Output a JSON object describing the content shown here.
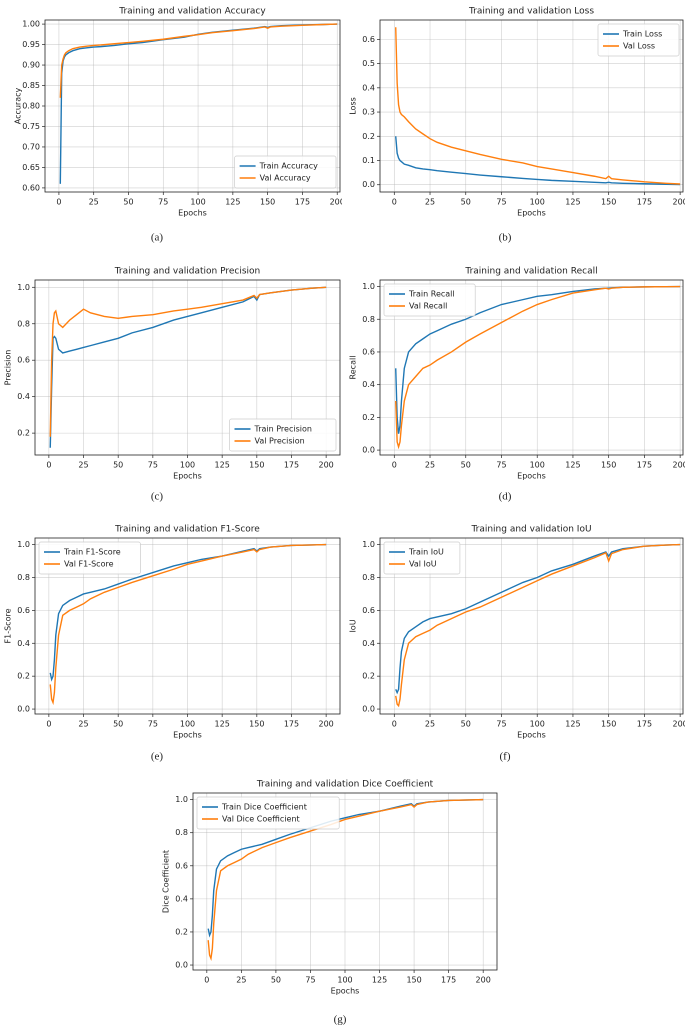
{
  "chart_data": [
    {
      "type": "line",
      "title": "Training and validation Accuracy",
      "xlabel": "Epochs",
      "ylabel": "Accuracy",
      "caption": "(a)",
      "x": [
        1,
        2,
        3,
        4,
        5,
        7,
        10,
        15,
        20,
        25,
        30,
        40,
        50,
        60,
        75,
        90,
        100,
        110,
        125,
        140,
        148,
        150,
        152,
        160,
        175,
        190,
        200
      ],
      "series": [
        {
          "name": "Train Accuracy",
          "color": "#1f77b4",
          "values": [
            0.61,
            0.88,
            0.91,
            0.92,
            0.925,
            0.93,
            0.935,
            0.94,
            0.942,
            0.944,
            0.945,
            0.948,
            0.952,
            0.955,
            0.962,
            0.968,
            0.975,
            0.98,
            0.985,
            0.99,
            0.994,
            0.992,
            0.994,
            0.996,
            0.998,
            0.999,
            1.0
          ]
        },
        {
          "name": "Val Accuracy",
          "color": "#ff7f0e",
          "values": [
            0.82,
            0.9,
            0.915,
            0.925,
            0.93,
            0.935,
            0.94,
            0.944,
            0.946,
            0.948,
            0.949,
            0.952,
            0.955,
            0.958,
            0.963,
            0.97,
            0.974,
            0.979,
            0.984,
            0.989,
            0.993,
            0.99,
            0.993,
            0.995,
            0.997,
            0.999,
            1.0
          ]
        }
      ],
      "xlim": [
        -10,
        202
      ],
      "xticks": [
        0,
        25,
        50,
        75,
        100,
        125,
        150,
        175,
        200
      ],
      "ylim": [
        0.59,
        1.01
      ],
      "yticks": [
        {
          "value": 0.6,
          "label": "0.60"
        },
        {
          "value": 0.65,
          "label": "0.65"
        },
        {
          "value": 0.7,
          "label": "0.70"
        },
        {
          "value": 0.75,
          "label": "0.75"
        },
        {
          "value": 0.8,
          "label": "0.80"
        },
        {
          "value": 0.85,
          "label": "0.85"
        },
        {
          "value": 0.9,
          "label": "0.90"
        },
        {
          "value": 0.95,
          "label": "0.95"
        },
        {
          "value": 1.0,
          "label": "1.00"
        }
      ],
      "grid": true,
      "legend": "lower right"
    },
    {
      "type": "line",
      "title": "Training and validation Loss",
      "xlabel": "Epochs",
      "ylabel": "Loss",
      "caption": "(b)",
      "x": [
        1,
        2,
        3,
        4,
        5,
        7,
        10,
        15,
        20,
        25,
        30,
        40,
        50,
        60,
        75,
        90,
        100,
        110,
        125,
        140,
        148,
        150,
        152,
        160,
        175,
        190,
        200
      ],
      "series": [
        {
          "name": "Train Loss",
          "color": "#1f77b4",
          "values": [
            0.2,
            0.13,
            0.11,
            0.1,
            0.095,
            0.085,
            0.08,
            0.07,
            0.065,
            0.062,
            0.058,
            0.052,
            0.046,
            0.04,
            0.033,
            0.026,
            0.022,
            0.018,
            0.014,
            0.01,
            0.008,
            0.01,
            0.008,
            0.006,
            0.004,
            0.002,
            0.001
          ]
        },
        {
          "name": "Val Loss",
          "color": "#ff7f0e",
          "values": [
            0.65,
            0.42,
            0.33,
            0.3,
            0.29,
            0.28,
            0.26,
            0.23,
            0.21,
            0.19,
            0.175,
            0.155,
            0.14,
            0.125,
            0.105,
            0.09,
            0.075,
            0.065,
            0.05,
            0.035,
            0.025,
            0.035,
            0.025,
            0.02,
            0.012,
            0.006,
            0.003
          ]
        }
      ],
      "xlim": [
        -10,
        202
      ],
      "xticks": [
        0,
        25,
        50,
        75,
        100,
        125,
        150,
        175,
        200
      ],
      "ylim": [
        -0.03,
        0.68
      ],
      "yticks": [
        {
          "value": 0,
          "label": "0.0"
        },
        0.1,
        0.2,
        0.3,
        0.4,
        0.5,
        0.6
      ],
      "grid": true,
      "legend": "upper right"
    },
    {
      "type": "line",
      "title": "Training and validation Precision",
      "xlabel": "Epochs",
      "ylabel": "Precision",
      "caption": "(c)",
      "x": [
        1,
        2,
        3,
        4,
        5,
        7,
        10,
        15,
        20,
        25,
        30,
        40,
        50,
        60,
        75,
        90,
        100,
        110,
        125,
        140,
        148,
        150,
        152,
        160,
        175,
        190,
        200
      ],
      "series": [
        {
          "name": "Train Precision",
          "color": "#1f77b4",
          "values": [
            0.12,
            0.45,
            0.72,
            0.73,
            0.72,
            0.66,
            0.64,
            0.65,
            0.66,
            0.67,
            0.68,
            0.7,
            0.72,
            0.75,
            0.78,
            0.82,
            0.84,
            0.86,
            0.89,
            0.92,
            0.95,
            0.93,
            0.96,
            0.97,
            0.985,
            0.995,
            1.0
          ]
        },
        {
          "name": "Val Precision",
          "color": "#ff7f0e",
          "values": [
            0.18,
            0.6,
            0.8,
            0.86,
            0.87,
            0.8,
            0.78,
            0.82,
            0.85,
            0.88,
            0.86,
            0.84,
            0.83,
            0.84,
            0.85,
            0.87,
            0.88,
            0.89,
            0.91,
            0.93,
            0.955,
            0.94,
            0.96,
            0.97,
            0.985,
            0.995,
            1.0
          ]
        }
      ],
      "xlim": [
        -10,
        210
      ],
      "xticks": [
        0,
        25,
        50,
        75,
        100,
        125,
        150,
        175,
        200
      ],
      "ylim": [
        0.08,
        1.04
      ],
      "yticks": [
        0.2,
        0.4,
        0.6,
        0.8,
        {
          "value": 1,
          "label": "1.0"
        }
      ],
      "grid": true,
      "legend": "lower right"
    },
    {
      "type": "line",
      "title": "Training and validation Recall",
      "xlabel": "Epochs",
      "ylabel": "Recall",
      "caption": "(d)",
      "x": [
        1,
        2,
        3,
        4,
        5,
        7,
        10,
        15,
        20,
        25,
        30,
        40,
        50,
        60,
        75,
        90,
        100,
        110,
        125,
        140,
        148,
        150,
        152,
        160,
        175,
        190,
        200
      ],
      "series": [
        {
          "name": "Train Recall",
          "color": "#1f77b4",
          "values": [
            0.5,
            0.2,
            0.1,
            0.15,
            0.3,
            0.5,
            0.6,
            0.65,
            0.68,
            0.71,
            0.73,
            0.77,
            0.8,
            0.84,
            0.89,
            0.92,
            0.94,
            0.95,
            0.97,
            0.985,
            0.99,
            0.99,
            0.992,
            0.995,
            0.998,
            0.999,
            1.0
          ]
        },
        {
          "name": "Val Recall",
          "color": "#ff7f0e",
          "values": [
            0.3,
            0.05,
            0.02,
            0.05,
            0.15,
            0.3,
            0.4,
            0.45,
            0.5,
            0.52,
            0.55,
            0.6,
            0.66,
            0.71,
            0.78,
            0.85,
            0.89,
            0.92,
            0.96,
            0.98,
            0.99,
            0.985,
            0.99,
            0.995,
            0.998,
            0.999,
            1.0
          ]
        }
      ],
      "xlim": [
        -10,
        202
      ],
      "xticks": [
        0,
        25,
        50,
        75,
        100,
        125,
        150,
        175,
        200
      ],
      "ylim": [
        -0.03,
        1.04
      ],
      "yticks": [
        {
          "value": 0,
          "label": "0.0"
        },
        0.2,
        0.4,
        0.6,
        0.8,
        {
          "value": 1,
          "label": "1.0"
        }
      ],
      "grid": true,
      "legend": "upper left"
    },
    {
      "type": "line",
      "title": "Training and validation F1-Score",
      "xlabel": "Epochs",
      "ylabel": "F1-Score",
      "caption": "(e)",
      "x": [
        1,
        2,
        3,
        4,
        5,
        7,
        10,
        15,
        20,
        25,
        30,
        40,
        50,
        60,
        75,
        90,
        100,
        110,
        125,
        140,
        148,
        150,
        152,
        160,
        175,
        190,
        200
      ],
      "series": [
        {
          "name": "Train F1-Score",
          "color": "#1f77b4",
          "values": [
            0.22,
            0.18,
            0.2,
            0.3,
            0.45,
            0.58,
            0.63,
            0.66,
            0.68,
            0.7,
            0.71,
            0.73,
            0.76,
            0.79,
            0.83,
            0.87,
            0.89,
            0.91,
            0.93,
            0.96,
            0.975,
            0.96,
            0.975,
            0.985,
            0.995,
            0.998,
            1.0
          ]
        },
        {
          "name": "Val F1-Score",
          "color": "#ff7f0e",
          "values": [
            0.15,
            0.06,
            0.04,
            0.1,
            0.25,
            0.45,
            0.57,
            0.6,
            0.62,
            0.64,
            0.67,
            0.71,
            0.74,
            0.77,
            0.81,
            0.85,
            0.88,
            0.9,
            0.93,
            0.955,
            0.97,
            0.955,
            0.97,
            0.985,
            0.995,
            0.998,
            1.0
          ]
        }
      ],
      "xlim": [
        -10,
        210
      ],
      "xticks": [
        0,
        25,
        50,
        75,
        100,
        125,
        150,
        175,
        200
      ],
      "ylim": [
        -0.03,
        1.04
      ],
      "yticks": [
        {
          "value": 0,
          "label": "0.0"
        },
        0.2,
        0.4,
        0.6,
        0.8,
        {
          "value": 1,
          "label": "1.0"
        }
      ],
      "grid": true,
      "legend": "upper left"
    },
    {
      "type": "line",
      "title": "Training and validation IoU",
      "xlabel": "Epochs",
      "ylabel": "IoU",
      "caption": "(f)",
      "x": [
        1,
        2,
        3,
        4,
        5,
        7,
        10,
        15,
        20,
        25,
        30,
        40,
        50,
        60,
        75,
        90,
        100,
        110,
        125,
        140,
        148,
        150,
        152,
        160,
        175,
        190,
        200
      ],
      "series": [
        {
          "name": "Train IoU",
          "color": "#1f77b4",
          "values": [
            0.12,
            0.1,
            0.12,
            0.25,
            0.35,
            0.43,
            0.47,
            0.5,
            0.53,
            0.55,
            0.56,
            0.58,
            0.61,
            0.65,
            0.71,
            0.77,
            0.8,
            0.84,
            0.88,
            0.93,
            0.955,
            0.93,
            0.955,
            0.975,
            0.99,
            0.997,
            1.0
          ]
        },
        {
          "name": "Val IoU",
          "color": "#ff7f0e",
          "values": [
            0.08,
            0.03,
            0.02,
            0.06,
            0.15,
            0.3,
            0.4,
            0.44,
            0.46,
            0.48,
            0.51,
            0.55,
            0.59,
            0.62,
            0.68,
            0.74,
            0.78,
            0.82,
            0.87,
            0.92,
            0.95,
            0.9,
            0.945,
            0.97,
            0.99,
            0.997,
            1.0
          ]
        }
      ],
      "xlim": [
        -10,
        202
      ],
      "xticks": [
        0,
        25,
        50,
        75,
        100,
        125,
        150,
        175,
        200
      ],
      "ylim": [
        -0.03,
        1.04
      ],
      "yticks": [
        {
          "value": 0,
          "label": "0.0"
        },
        0.2,
        0.4,
        0.6,
        0.8,
        {
          "value": 1,
          "label": "1.0"
        }
      ],
      "grid": true,
      "legend": "upper left"
    },
    {
      "type": "line",
      "title": "Training and validation Dice Coefficient",
      "xlabel": "Epochs",
      "ylabel": "Dice Coefficient",
      "caption": "(g)",
      "x": [
        1,
        2,
        3,
        4,
        5,
        7,
        10,
        15,
        20,
        25,
        30,
        40,
        50,
        60,
        75,
        90,
        100,
        110,
        125,
        140,
        148,
        150,
        152,
        160,
        175,
        190,
        200
      ],
      "series": [
        {
          "name": "Train Dice Coefficient",
          "color": "#1f77b4",
          "values": [
            0.22,
            0.18,
            0.2,
            0.3,
            0.45,
            0.58,
            0.63,
            0.66,
            0.68,
            0.7,
            0.71,
            0.73,
            0.76,
            0.79,
            0.83,
            0.87,
            0.89,
            0.91,
            0.93,
            0.96,
            0.975,
            0.96,
            0.975,
            0.985,
            0.995,
            0.998,
            1.0
          ]
        },
        {
          "name": "Val Dice Coefficient",
          "color": "#ff7f0e",
          "values": [
            0.15,
            0.06,
            0.04,
            0.1,
            0.25,
            0.45,
            0.57,
            0.6,
            0.62,
            0.64,
            0.67,
            0.71,
            0.74,
            0.77,
            0.81,
            0.85,
            0.88,
            0.9,
            0.93,
            0.955,
            0.97,
            0.955,
            0.97,
            0.985,
            0.995,
            0.998,
            1.0
          ]
        }
      ],
      "xlim": [
        -10,
        210
      ],
      "xticks": [
        0,
        25,
        50,
        75,
        100,
        125,
        150,
        175,
        200
      ],
      "ylim": [
        -0.03,
        1.04
      ],
      "yticks": [
        {
          "value": 0,
          "label": "0.0"
        },
        0.2,
        0.4,
        0.6,
        0.8,
        {
          "value": 1,
          "label": "1.0"
        }
      ],
      "grid": true,
      "legend": "upper left"
    }
  ]
}
